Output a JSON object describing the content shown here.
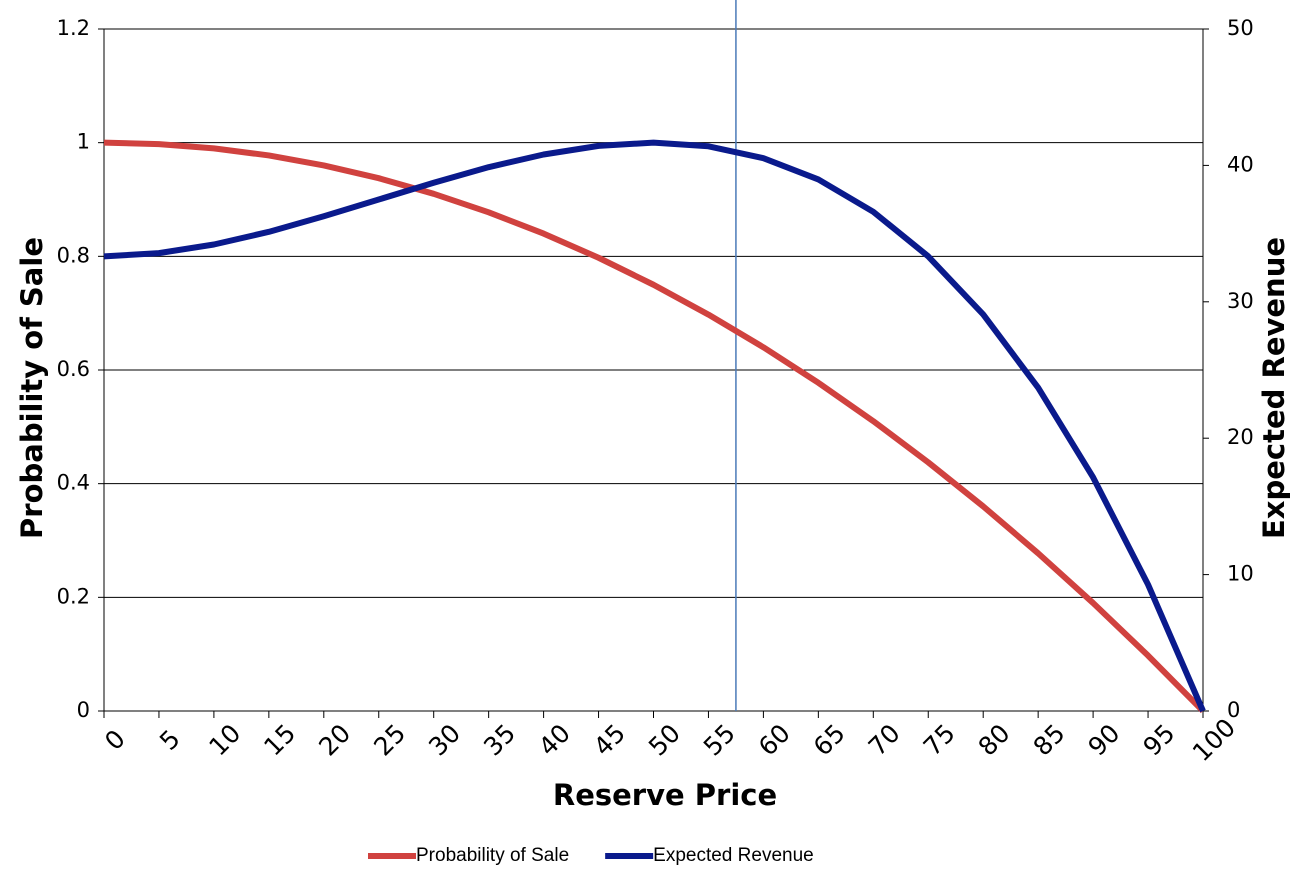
{
  "chart_data": {
    "type": "line",
    "xlabel": "Reserve Price",
    "ylabel": "Probability of Sale",
    "y2label": "Expected Revenue",
    "x": [
      0,
      5,
      10,
      15,
      20,
      25,
      30,
      35,
      40,
      45,
      50,
      55,
      60,
      65,
      70,
      75,
      80,
      85,
      90,
      95,
      100
    ],
    "series": [
      {
        "name": "Probability of Sale",
        "color": "#d0423f",
        "values": [
          1,
          0.9975,
          0.99,
          0.9775,
          0.96,
          0.9375,
          0.91,
          0.8775,
          0.84,
          0.7975,
          0.75,
          0.6975,
          0.64,
          0.5775,
          0.51,
          0.4375,
          0.36,
          0.2775,
          0.19,
          0.0975,
          0
        ]
      },
      {
        "name": "Expected Revenue",
        "color": "#0a1a8c",
        "axis": "y2",
        "values": [
          33.33,
          33.57,
          34.2,
          35.13,
          36.27,
          37.5,
          38.73,
          39.87,
          40.8,
          41.43,
          41.67,
          41.4,
          40.53,
          38.97,
          36.6,
          33.33,
          29.07,
          23.7,
          17.13,
          9.27,
          0
        ]
      }
    ],
    "vline": 57.5,
    "vline_color": "#4a7ab8",
    "xlim": [
      0,
      100
    ],
    "xticks": [
      0,
      5,
      10,
      15,
      20,
      25,
      30,
      35,
      40,
      45,
      50,
      55,
      60,
      65,
      70,
      75,
      80,
      85,
      90,
      95,
      100
    ],
    "ylim": [
      0,
      1.2
    ],
    "yticks": [
      0,
      0.2,
      0.4,
      0.6,
      0.8,
      1,
      1.2
    ],
    "y2lim": [
      0,
      50
    ],
    "y2ticks": [
      0,
      10,
      20,
      30,
      40,
      50
    ],
    "grid": true,
    "legend": "bottom"
  }
}
